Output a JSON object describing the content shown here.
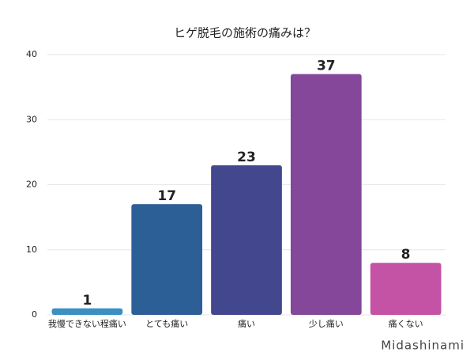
{
  "chart_data": {
    "type": "bar",
    "title": "ヒゲ脱毛の施術の痛みは？",
    "categories": [
      "我慢できない程痛い",
      "とても痛い",
      "痛い",
      "少し痛い",
      "痛くない"
    ],
    "values": [
      1,
      17,
      23,
      37,
      8
    ],
    "colors": [
      "#3b8fc2",
      "#2d5f97",
      "#43478e",
      "#84479a",
      "#c453a6"
    ],
    "ylim": [
      0,
      40
    ],
    "yticks": [
      0,
      10,
      20,
      30,
      40
    ],
    "grid": true,
    "watermark": "Midashinami"
  }
}
